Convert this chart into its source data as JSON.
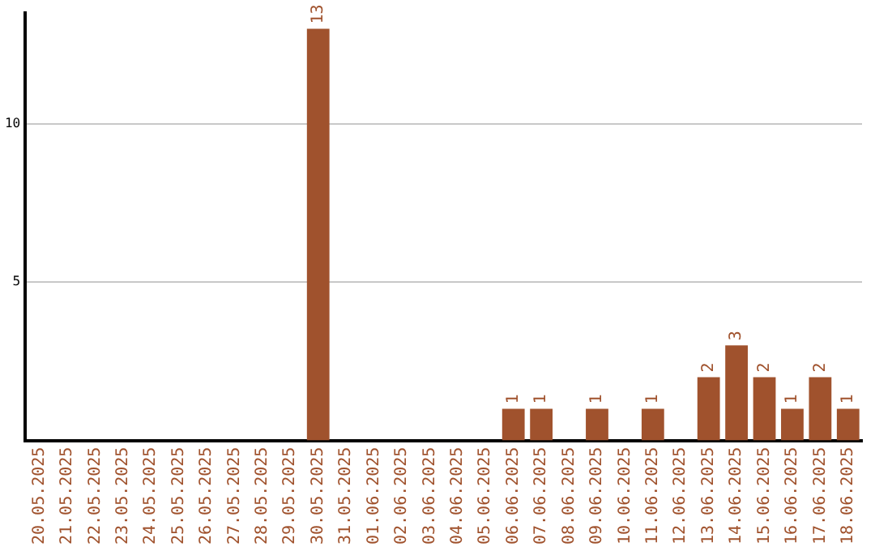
{
  "chart_data": {
    "type": "bar",
    "categories": [
      "20.05.2025",
      "21.05.2025",
      "22.05.2025",
      "23.05.2025",
      "24.05.2025",
      "25.05.2025",
      "26.05.2025",
      "27.05.2025",
      "28.05.2025",
      "29.05.2025",
      "30.05.2025",
      "31.05.2025",
      "01.06.2025",
      "02.06.2025",
      "03.06.2025",
      "04.06.2025",
      "05.06.2025",
      "06.06.2025",
      "07.06.2025",
      "08.06.2025",
      "09.06.2025",
      "10.06.2025",
      "11.06.2025",
      "12.06.2025",
      "13.06.2025",
      "14.06.2025",
      "15.06.2025",
      "16.06.2025",
      "17.06.2025",
      "18.06.2025"
    ],
    "values": [
      null,
      null,
      null,
      null,
      null,
      null,
      null,
      null,
      null,
      null,
      13,
      null,
      null,
      null,
      null,
      null,
      null,
      1,
      1,
      null,
      1,
      null,
      1,
      null,
      2,
      3,
      2,
      1,
      2,
      1
    ],
    "color": "#a0522d",
    "ylim": [
      0,
      13.5
    ],
    "yticks": [
      5,
      10
    ],
    "grid": "y",
    "data_labels": true,
    "legend": false
  }
}
